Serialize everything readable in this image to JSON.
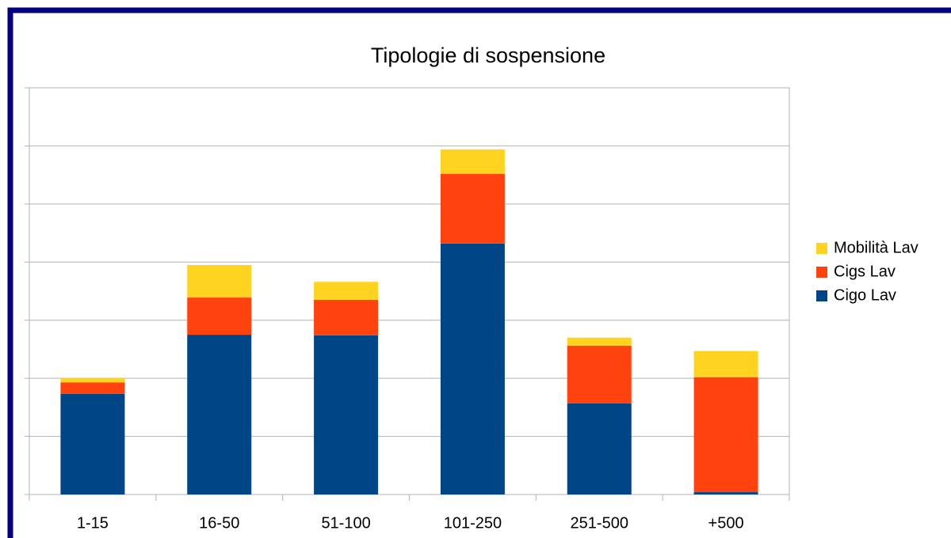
{
  "chart_data": {
    "type": "stacked_bar",
    "title": "Tipologie di sospensione",
    "categories": [
      "1-15",
      "16-50",
      "51-100",
      "101-250",
      "251-500",
      "+500"
    ],
    "series": [
      {
        "name": "Cigo Lav",
        "color": "#004586",
        "values": [
          1.73,
          2.75,
          2.74,
          4.32,
          1.57,
          0.04
        ]
      },
      {
        "name": "Cigs Lav",
        "color": "#ff420e",
        "values": [
          0.2,
          0.64,
          0.61,
          1.2,
          0.99,
          1.98
        ]
      },
      {
        "name": "Mobilità Lav",
        "color": "#ffd320",
        "values": [
          0.07,
          0.56,
          0.31,
          0.42,
          0.14,
          0.45
        ]
      }
    ],
    "ylim": [
      0,
      7
    ],
    "yticks": [
      0,
      1,
      2,
      3,
      4,
      5,
      6,
      7
    ],
    "grid": true,
    "legend": "right"
  }
}
